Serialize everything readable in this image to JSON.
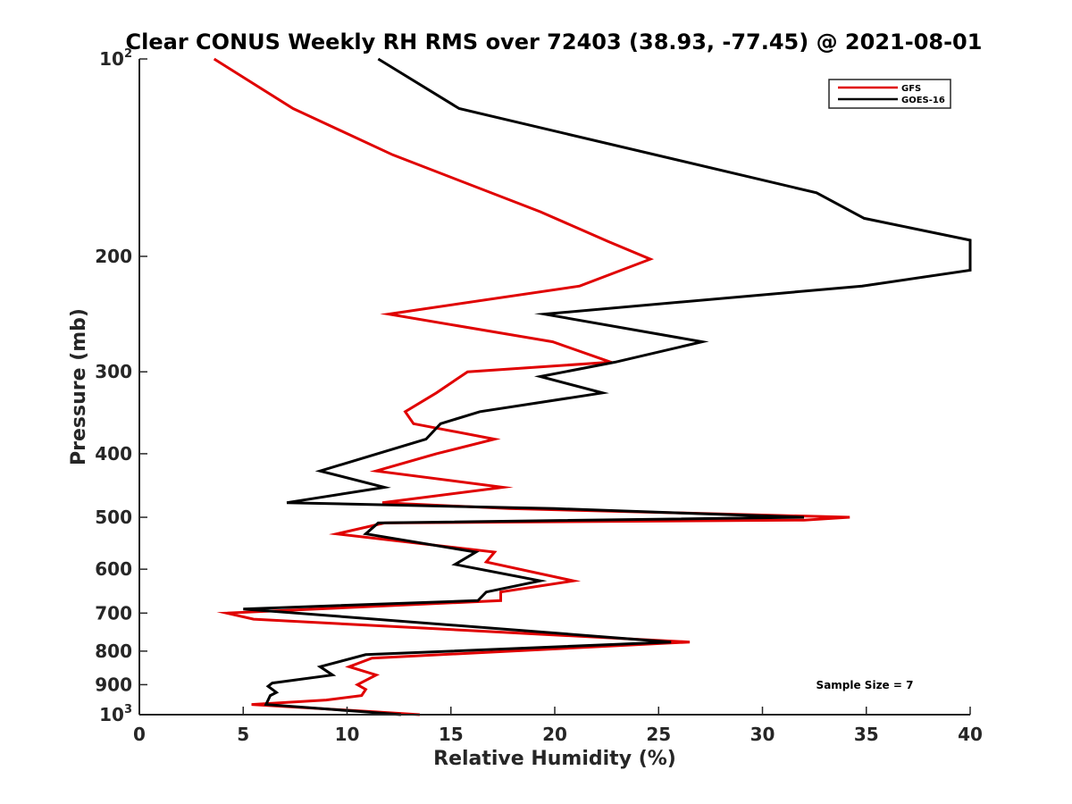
{
  "chart_data": {
    "type": "line",
    "title": "Clear CONUS Weekly RH RMS over 72403 (38.93, -77.45) @ 2021-08-01",
    "xlabel": "Relative Humidity (%)",
    "ylabel": "Pressure (mb)",
    "xlim": [
      0,
      40
    ],
    "ylim": [
      100,
      1000
    ],
    "y_scale": "log",
    "y_reversed": true,
    "x_ticks": [
      "0",
      "5",
      "10",
      "15",
      "20",
      "25",
      "30",
      "35",
      "40"
    ],
    "y_ticks": [
      {
        "value": 100,
        "base": "10",
        "exp": "2"
      },
      {
        "value": 200,
        "label": "200"
      },
      {
        "value": 300,
        "label": "300"
      },
      {
        "value": 400,
        "label": "400"
      },
      {
        "value": 500,
        "label": "500"
      },
      {
        "value": 600,
        "label": "600"
      },
      {
        "value": 700,
        "label": "700"
      },
      {
        "value": 800,
        "label": "800"
      },
      {
        "value": 900,
        "label": "900"
      },
      {
        "value": 1000,
        "base": "10",
        "exp": "3"
      }
    ],
    "legend_position": "top-right",
    "grid": false,
    "series": [
      {
        "name": "GFS",
        "color": "#e00000",
        "points": [
          [
            3.6,
            100
          ],
          [
            7.4,
            119
          ],
          [
            12.2,
            140
          ],
          [
            19.3,
            171
          ],
          [
            22.6,
            190
          ],
          [
            24.6,
            202
          ],
          [
            21.2,
            222
          ],
          [
            12.0,
            245
          ],
          [
            19.9,
            270
          ],
          [
            22.7,
            290
          ],
          [
            15.8,
            300
          ],
          [
            14.3,
            323
          ],
          [
            12.8,
            345
          ],
          [
            13.2,
            360
          ],
          [
            17.1,
            380
          ],
          [
            14.3,
            400
          ],
          [
            11.4,
            425
          ],
          [
            17.5,
            450
          ],
          [
            11.7,
            475
          ],
          [
            17.8,
            485
          ],
          [
            34.2,
            500
          ],
          [
            32.0,
            505
          ],
          [
            11.8,
            510
          ],
          [
            9.5,
            530
          ],
          [
            17.1,
            565
          ],
          [
            16.7,
            585
          ],
          [
            20.9,
            625
          ],
          [
            17.4,
            650
          ],
          [
            17.4,
            670
          ],
          [
            4.2,
            700
          ],
          [
            5.5,
            715
          ],
          [
            26.5,
            775
          ],
          [
            11.2,
            820
          ],
          [
            10.1,
            845
          ],
          [
            11.4,
            870
          ],
          [
            10.5,
            900
          ],
          [
            10.9,
            915
          ],
          [
            10.7,
            935
          ],
          [
            9.0,
            950
          ],
          [
            5.4,
            965
          ],
          [
            11.3,
            990
          ],
          [
            13.5,
            1000
          ]
        ]
      },
      {
        "name": "GOES-16",
        "color": "#000000",
        "points": [
          [
            11.5,
            100
          ],
          [
            15.4,
            119
          ],
          [
            32.6,
            160
          ],
          [
            34.9,
            175
          ],
          [
            40.0,
            189
          ],
          [
            40.0,
            210
          ],
          [
            34.8,
            222
          ],
          [
            19.5,
            245
          ],
          [
            27.1,
            270
          ],
          [
            22.9,
            290
          ],
          [
            19.3,
            305
          ],
          [
            22.3,
            323
          ],
          [
            16.4,
            345
          ],
          [
            14.5,
            360
          ],
          [
            13.8,
            380
          ],
          [
            8.7,
            425
          ],
          [
            11.8,
            450
          ],
          [
            7.1,
            475
          ],
          [
            20.0,
            485
          ],
          [
            32.0,
            500
          ],
          [
            11.5,
            510
          ],
          [
            10.9,
            530
          ],
          [
            16.2,
            565
          ],
          [
            15.2,
            590
          ],
          [
            19.3,
            625
          ],
          [
            16.7,
            650
          ],
          [
            16.3,
            670
          ],
          [
            5.0,
            690
          ],
          [
            25.6,
            775
          ],
          [
            10.9,
            810
          ],
          [
            8.7,
            845
          ],
          [
            9.3,
            870
          ],
          [
            6.4,
            895
          ],
          [
            6.2,
            905
          ],
          [
            6.6,
            925
          ],
          [
            6.3,
            935
          ],
          [
            6.1,
            965
          ],
          [
            10.8,
            990
          ],
          [
            12.6,
            1000
          ]
        ]
      }
    ],
    "annotations": [
      "Sample Size = 7"
    ]
  }
}
